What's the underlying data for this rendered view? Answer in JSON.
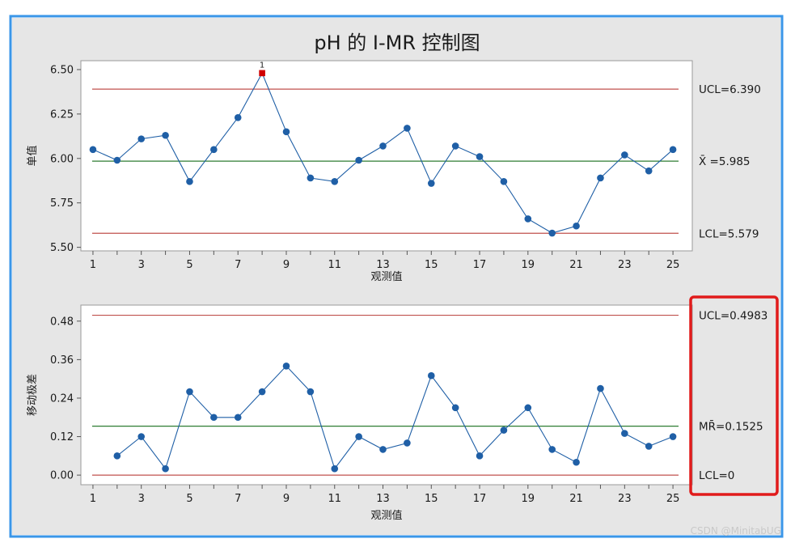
{
  "title": "pH 的 I-MR 控制图",
  "watermark": "CSDN @MinitabUG",
  "colors": {
    "frame_border": "#3a96e8",
    "panel_bg": "#e6e6e6",
    "limit_line": "#c0504d",
    "center_line": "#2e7d32",
    "series": "#1f5fa6",
    "out_of_control": "#d00000",
    "highlight_box": "#e11b1b"
  },
  "chart_data": [
    {
      "type": "line",
      "name": "individual",
      "ylabel": "单值",
      "xlabel": "观测值",
      "x": [
        1,
        2,
        3,
        4,
        5,
        6,
        7,
        8,
        9,
        10,
        11,
        12,
        13,
        14,
        15,
        16,
        17,
        18,
        19,
        20,
        21,
        22,
        23,
        24,
        25
      ],
      "values": [
        6.05,
        5.99,
        6.11,
        6.13,
        5.87,
        6.05,
        6.23,
        6.48,
        6.15,
        5.89,
        5.87,
        5.99,
        6.07,
        6.17,
        5.86,
        6.07,
        6.01,
        5.87,
        5.66,
        5.58,
        5.62,
        5.89,
        6.02,
        5.93,
        6.05
      ],
      "xticks": [
        "1",
        "3",
        "5",
        "7",
        "9",
        "11",
        "13",
        "15",
        "17",
        "19",
        "21",
        "23",
        "25"
      ],
      "yticks": [
        "5.50",
        "5.75",
        "6.00",
        "6.25",
        "6.50"
      ],
      "ylim": [
        5.48,
        6.55
      ],
      "xlim": [
        0.5,
        25.8
      ],
      "limits": {
        "ucl": 6.39,
        "center": 5.985,
        "lcl": 5.579
      },
      "limit_labels": {
        "ucl": "UCL=6.390",
        "center": "X̄ =5.985",
        "lcl": "LCL=5.579"
      },
      "flagged": [
        {
          "x": 8,
          "label": "1"
        }
      ]
    },
    {
      "type": "line",
      "name": "moving-range",
      "ylabel": "移动极差",
      "xlabel": "观测值",
      "x": [
        2,
        3,
        4,
        5,
        6,
        7,
        8,
        9,
        10,
        11,
        12,
        13,
        14,
        15,
        16,
        17,
        18,
        19,
        20,
        21,
        22,
        23,
        24,
        25
      ],
      "values": [
        0.06,
        0.12,
        0.02,
        0.26,
        0.18,
        0.18,
        0.26,
        0.34,
        0.26,
        0.02,
        0.12,
        0.08,
        0.1,
        0.31,
        0.21,
        0.06,
        0.14,
        0.21,
        0.08,
        0.04,
        0.27,
        0.13,
        0.09,
        0.12
      ],
      "xticks": [
        "1",
        "3",
        "5",
        "7",
        "9",
        "11",
        "13",
        "15",
        "17",
        "19",
        "21",
        "23",
        "25"
      ],
      "yticks": [
        "0.00",
        "0.12",
        "0.24",
        "0.36",
        "0.48"
      ],
      "ylim": [
        -0.03,
        0.53
      ],
      "xlim": [
        0.5,
        25.8
      ],
      "limits": {
        "ucl": 0.4983,
        "center": 0.1525,
        "lcl": 0
      },
      "limit_labels": {
        "ucl": "UCL=0.4983",
        "center": "MR̄=0.1525",
        "lcl": "LCL=0"
      }
    }
  ]
}
